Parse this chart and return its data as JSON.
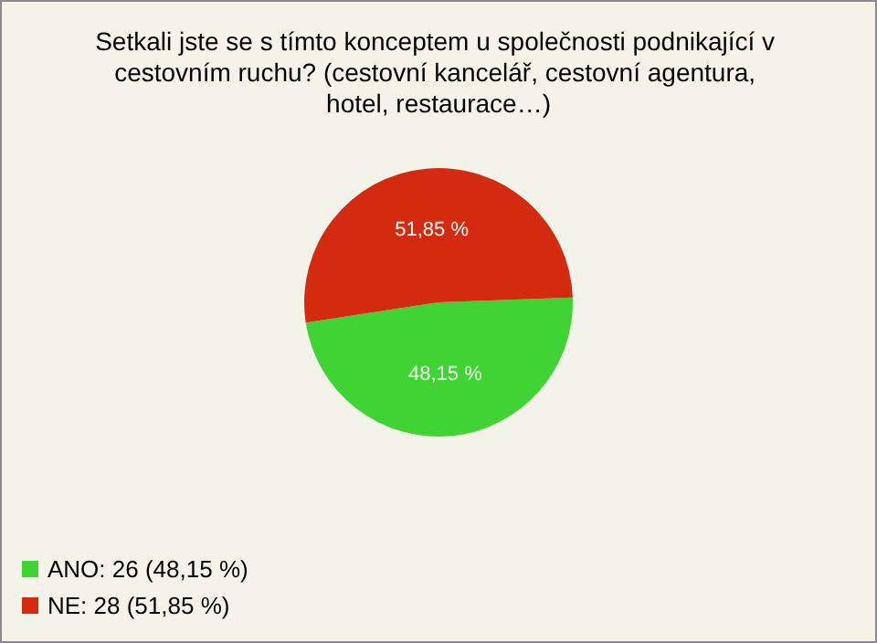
{
  "chart_data": {
    "type": "pie",
    "title": "Setkali jste se s tímto konceptem u společnosti podnikající v cestovním ruchu? (cestovní kancelář, cestovní agentura, hotel, restaurace…)",
    "categories": [
      "ANO: 26 (48,15 %)",
      "NE: 28 (51,85 %)"
    ],
    "values": [
      48.15,
      51.85
    ],
    "colors": [
      "#3fd433",
      "#d42a10"
    ],
    "value_labels": [
      "48,15 %",
      "51,85 %"
    ],
    "legend": "bottom left"
  }
}
